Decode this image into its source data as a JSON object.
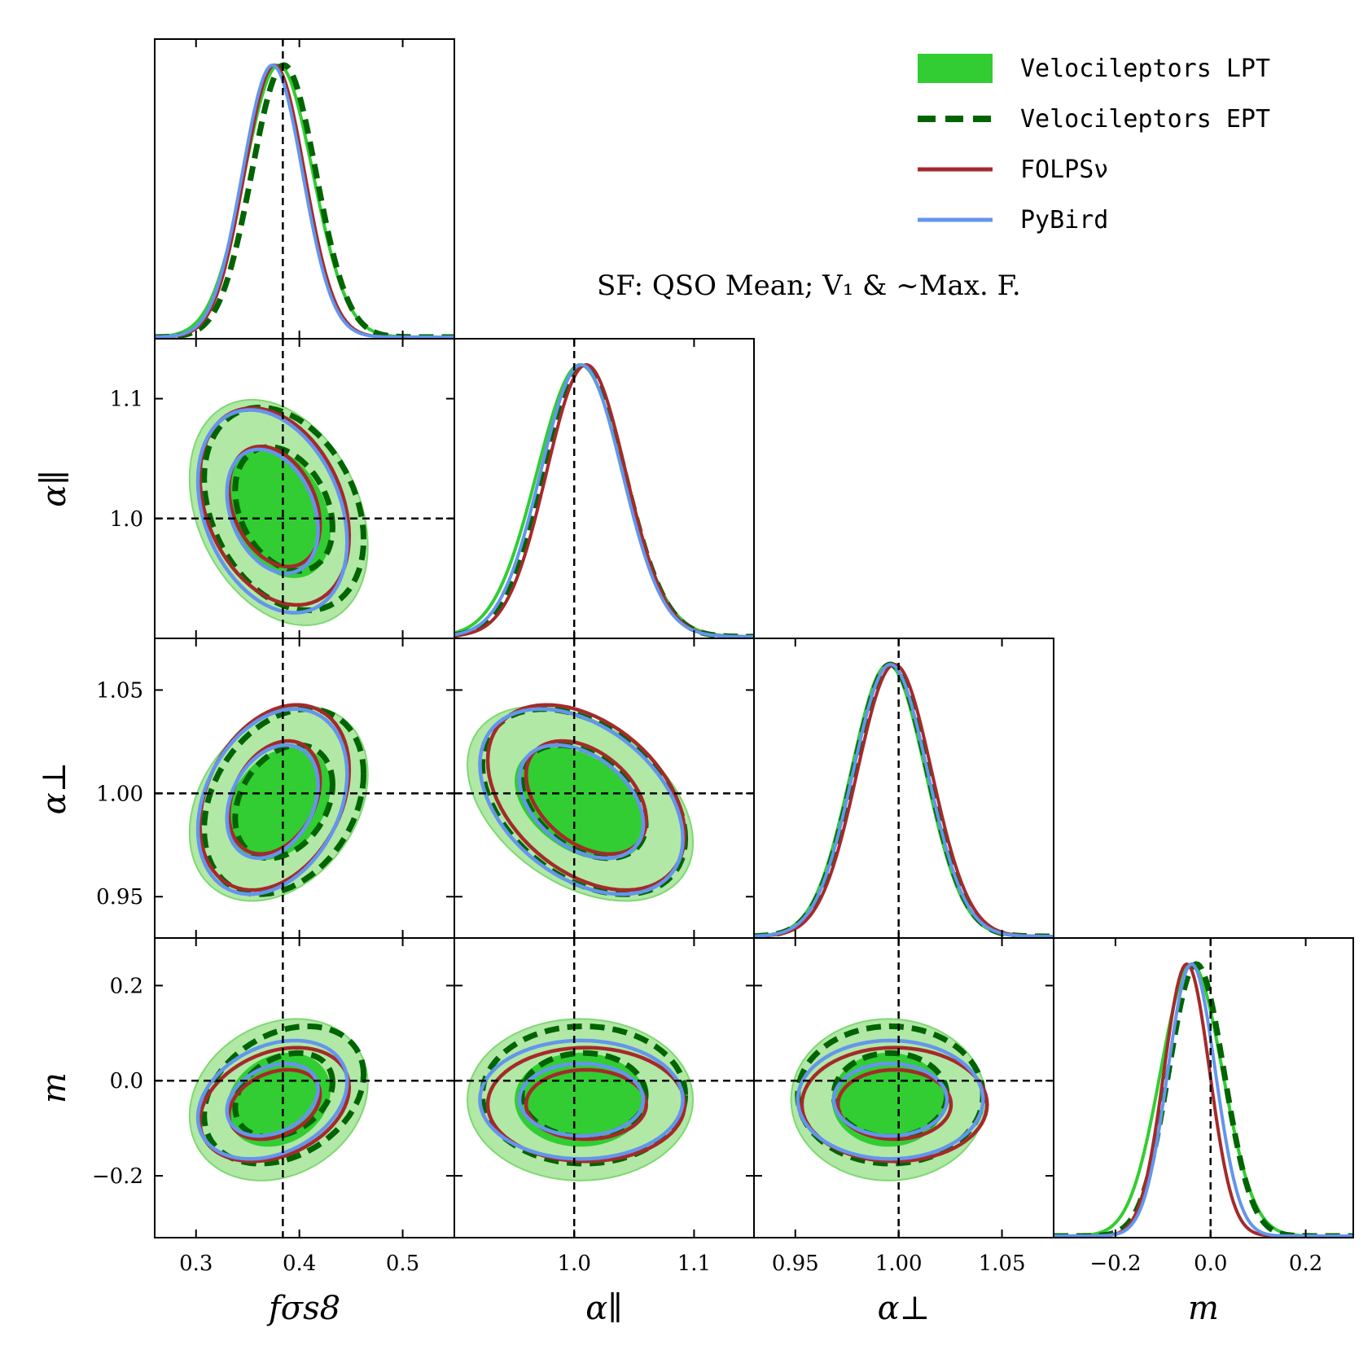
{
  "chart_data": {
    "type": "corner",
    "annotation": "SF: QSO Mean; V₁ & ~Max. F.",
    "legend_position": "top-right",
    "parameters": [
      {
        "key": "fs8",
        "label": "fσs8",
        "range": [
          0.26,
          0.55
        ],
        "ticks": [
          0.3,
          0.4,
          0.5
        ],
        "tick_labels": [
          "0.3",
          "0.4",
          "0.5"
        ],
        "truth": 0.384
      },
      {
        "key": "apar",
        "label": "α∥",
        "range": [
          0.9,
          1.15
        ],
        "ticks": [
          1.0,
          1.1
        ],
        "tick_labels": [
          "1.0",
          "1.1"
        ],
        "truth": 1.0
      },
      {
        "key": "aperp",
        "label": "α⊥",
        "range": [
          0.93,
          1.075
        ],
        "ticks": [
          0.95,
          1.0,
          1.05
        ],
        "tick_labels": [
          "0.95",
          "1.00",
          "1.05"
        ],
        "truth": 1.0
      },
      {
        "key": "m",
        "label": "m",
        "range": [
          -0.33,
          0.3
        ],
        "ticks": [
          -0.2,
          0.0,
          0.2
        ],
        "tick_labels": [
          "−0.2",
          "0.0",
          "0.2"
        ],
        "truth": 0.0
      }
    ],
    "series": [
      {
        "name": "Velocileptors LPT",
        "style": "filled",
        "color": "#32cd32",
        "mean": {
          "fs8": 0.38,
          "apar": 1.005,
          "aperp": 0.995,
          "m": -0.04
        },
        "sigma": {
          "fs8": 0.033,
          "apar": 0.036,
          "aperp": 0.018,
          "m": 0.065
        },
        "corr": {
          "fs8|apar": -0.3,
          "fs8|aperp": 0.3,
          "fs8|m": 0.2,
          "apar|aperp": -0.4,
          "apar|m": 0.0,
          "aperp|m": 0.0
        }
      },
      {
        "name": "Velocileptors EPT",
        "style": "dashed",
        "color": "#006400",
        "mean": {
          "fs8": 0.385,
          "apar": 1.008,
          "aperp": 0.996,
          "m": -0.03
        },
        "sigma": {
          "fs8": 0.031,
          "apar": 0.034,
          "aperp": 0.018,
          "m": 0.058
        },
        "corr": {
          "fs8|apar": -0.3,
          "fs8|aperp": 0.3,
          "fs8|m": 0.3,
          "apar|aperp": -0.4,
          "apar|m": 0.0,
          "aperp|m": 0.0
        }
      },
      {
        "name": "FOLPSν",
        "style": "line",
        "color": "#a52a2a",
        "mean": {
          "fs8": 0.376,
          "apar": 1.01,
          "aperp": 0.998,
          "m": -0.05
        },
        "sigma": {
          "fs8": 0.029,
          "apar": 0.033,
          "aperp": 0.018,
          "m": 0.048
        },
        "corr": {
          "fs8|apar": -0.3,
          "fs8|aperp": 0.3,
          "fs8|m": 0.3,
          "apar|aperp": -0.4,
          "apar|m": 0.0,
          "aperp|m": 0.0
        }
      },
      {
        "name": "PyBird",
        "style": "line",
        "color": "#6495ed",
        "mean": {
          "fs8": 0.374,
          "apar": 1.006,
          "aperp": 0.996,
          "m": -0.04
        },
        "sigma": {
          "fs8": 0.029,
          "apar": 0.034,
          "aperp": 0.018,
          "m": 0.05
        },
        "corr": {
          "fs8|apar": -0.3,
          "fs8|aperp": 0.3,
          "fs8|m": 0.3,
          "apar|aperp": -0.4,
          "apar|m": 0.0,
          "aperp|m": 0.0
        }
      }
    ]
  }
}
